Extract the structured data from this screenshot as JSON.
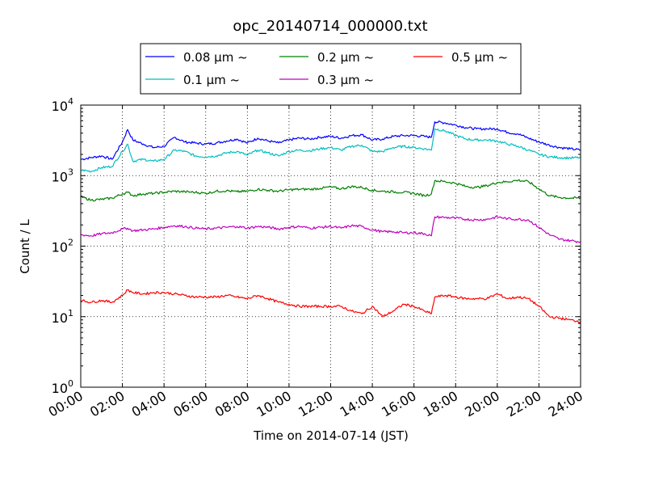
{
  "chart_data": {
    "type": "line",
    "title": "opc_20140714_000000.txt",
    "xlabel": "Time on 2014-07-14 (JST)",
    "ylabel": "Count / L",
    "y_scale": "log",
    "ylim": [
      1,
      10000
    ],
    "xlim": [
      "00:00",
      "24:00"
    ],
    "x_ticks": [
      "00:00",
      "02:00",
      "04:00",
      "06:00",
      "08:00",
      "10:00",
      "12:00",
      "14:00",
      "16:00",
      "18:00",
      "20:00",
      "22:00",
      "24:00"
    ],
    "y_ticks": [
      {
        "base": "10",
        "exp": "0"
      },
      {
        "base": "10",
        "exp": "1"
      },
      {
        "base": "10",
        "exp": "2"
      },
      {
        "base": "10",
        "exp": "3"
      },
      {
        "base": "10",
        "exp": "4"
      }
    ],
    "grid": true,
    "legend_position": "top",
    "x": [
      "00:00",
      "00:30",
      "01:00",
      "01:30",
      "02:00",
      "02:15",
      "02:30",
      "03:00",
      "03:30",
      "04:00",
      "04:30",
      "05:00",
      "05:30",
      "06:00",
      "06:30",
      "07:00",
      "07:30",
      "08:00",
      "08:30",
      "09:00",
      "09:30",
      "10:00",
      "10:30",
      "11:00",
      "11:30",
      "12:00",
      "12:30",
      "13:00",
      "13:30",
      "14:00",
      "14:30",
      "15:00",
      "15:30",
      "16:00",
      "16:30",
      "16:50",
      "17:00",
      "17:30",
      "18:00",
      "18:30",
      "19:00",
      "19:30",
      "20:00",
      "20:30",
      "21:00",
      "21:30",
      "22:00",
      "22:30",
      "23:00",
      "23:30",
      "24:00"
    ],
    "series": [
      {
        "name": "0.08 μm ~",
        "color": "#0000ff",
        "values": [
          1700,
          1800,
          1900,
          1700,
          3000,
          4500,
          3200,
          2800,
          2500,
          2600,
          3500,
          3000,
          2900,
          2800,
          2900,
          3100,
          3300,
          2900,
          3400,
          3100,
          2900,
          3200,
          3400,
          3300,
          3500,
          3600,
          3400,
          3700,
          3800,
          3200,
          3300,
          3600,
          3700,
          3700,
          3600,
          3500,
          5800,
          5600,
          5200,
          4800,
          4600,
          4600,
          4600,
          4100,
          3900,
          3400,
          3000,
          2700,
          2500,
          2400,
          2300
        ]
      },
      {
        "name": "0.1 μm ~",
        "color": "#00bfbf",
        "values": [
          1200,
          1150,
          1300,
          1350,
          2200,
          2800,
          1600,
          1700,
          1600,
          1700,
          2300,
          2200,
          1900,
          1850,
          1900,
          2100,
          2200,
          1950,
          2300,
          2100,
          1900,
          2200,
          2300,
          2250,
          2400,
          2500,
          2300,
          2600,
          2700,
          2200,
          2200,
          2500,
          2600,
          2500,
          2400,
          2300,
          4600,
          4300,
          3700,
          3300,
          3200,
          3200,
          3100,
          2800,
          2600,
          2300,
          2000,
          1850,
          1800,
          1780,
          1800
        ]
      },
      {
        "name": "0.2 μm ~",
        "color": "#008000",
        "values": [
          500,
          450,
          460,
          480,
          550,
          580,
          520,
          550,
          560,
          580,
          600,
          590,
          580,
          560,
          600,
          610,
          590,
          600,
          640,
          620,
          600,
          630,
          640,
          640,
          660,
          690,
          650,
          700,
          680,
          620,
          600,
          590,
          580,
          560,
          520,
          550,
          850,
          820,
          780,
          700,
          680,
          720,
          800,
          820,
          860,
          820,
          650,
          520,
          490,
          480,
          480
        ]
      },
      {
        "name": "0.3 μm ~",
        "color": "#bf00bf",
        "values": [
          145,
          140,
          150,
          155,
          175,
          180,
          165,
          170,
          175,
          185,
          195,
          190,
          180,
          175,
          180,
          185,
          190,
          180,
          190,
          185,
          175,
          185,
          190,
          180,
          185,
          190,
          180,
          195,
          190,
          170,
          160,
          160,
          155,
          155,
          150,
          140,
          260,
          255,
          250,
          240,
          235,
          240,
          260,
          245,
          240,
          235,
          185,
          145,
          125,
          120,
          115
        ]
      },
      {
        "name": "0.5 μm ~",
        "color": "#ff0000",
        "values": [
          17,
          16,
          17,
          16,
          20,
          24,
          22,
          21,
          22,
          22,
          21,
          20,
          19,
          19,
          19,
          20,
          19,
          18,
          20,
          18,
          16,
          15,
          14,
          14,
          14,
          14,
          14,
          12,
          11,
          14,
          10,
          12,
          15,
          14,
          12,
          11,
          19,
          20,
          19,
          18,
          18,
          18,
          21,
          18,
          19,
          18,
          14,
          10,
          9.5,
          9,
          8.5
        ]
      }
    ]
  }
}
